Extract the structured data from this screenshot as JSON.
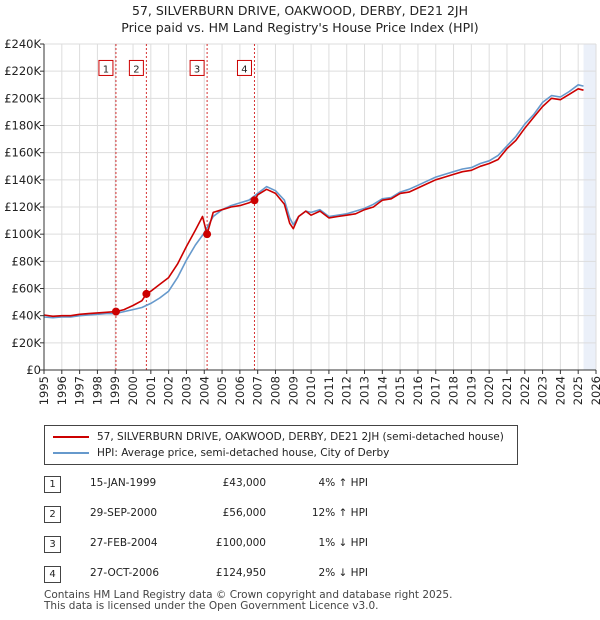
{
  "chart_data": {
    "type": "line",
    "title_line1": "57, SILVERBURN DRIVE, OAKWOOD, DERBY, DE21 2JH",
    "title_line2": "Price paid vs. HM Land Registry's House Price Index (HPI)",
    "xlim": [
      1995,
      2026
    ],
    "ylim": [
      0,
      240000
    ],
    "x_ticks": [
      "1995",
      "1996",
      "1997",
      "1998",
      "1999",
      "2000",
      "2001",
      "2002",
      "2003",
      "2004",
      "2005",
      "2006",
      "2007",
      "2008",
      "2009",
      "2010",
      "2011",
      "2012",
      "2013",
      "2014",
      "2015",
      "2016",
      "2017",
      "2018",
      "2019",
      "2020",
      "2021",
      "2022",
      "2023",
      "2024",
      "2025",
      "2026"
    ],
    "y_ticks": [
      {
        "value": 0,
        "label": "£0"
      },
      {
        "value": 20000,
        "label": "£20K"
      },
      {
        "value": 40000,
        "label": "£40K"
      },
      {
        "value": 60000,
        "label": "£60K"
      },
      {
        "value": 80000,
        "label": "£80K"
      },
      {
        "value": 100000,
        "label": "£100K"
      },
      {
        "value": 120000,
        "label": "£120K"
      },
      {
        "value": 140000,
        "label": "£140K"
      },
      {
        "value": 160000,
        "label": "£160K"
      },
      {
        "value": 180000,
        "label": "£180K"
      },
      {
        "value": 200000,
        "label": "£200K"
      },
      {
        "value": 220000,
        "label": "£220K"
      },
      {
        "value": 240000,
        "label": "£240K"
      }
    ],
    "grid": true,
    "series": [
      {
        "name": "57, SILVERBURN DRIVE, OAKWOOD, DERBY, DE21 2JH (semi-detached house)",
        "color": "#cc0000",
        "x": [
          1995.0,
          1995.5,
          1996.0,
          1996.5,
          1997.0,
          1997.5,
          1998.0,
          1998.5,
          1999.04,
          1999.5,
          2000.0,
          2000.5,
          2000.75,
          2001.0,
          2001.5,
          2002.0,
          2002.5,
          2003.0,
          2003.5,
          2003.9,
          2004.16,
          2004.5,
          2005.0,
          2005.5,
          2006.0,
          2006.5,
          2006.82,
          2007.0,
          2007.5,
          2008.0,
          2008.5,
          2008.8,
          2009.0,
          2009.3,
          2009.7,
          2010.0,
          2010.5,
          2011.0,
          2011.5,
          2012.0,
          2012.5,
          2013.0,
          2013.5,
          2014.0,
          2014.5,
          2015.0,
          2015.5,
          2016.0,
          2016.5,
          2017.0,
          2017.5,
          2018.0,
          2018.5,
          2019.0,
          2019.5,
          2020.0,
          2020.5,
          2021.0,
          2021.5,
          2022.0,
          2022.5,
          2023.0,
          2023.5,
          2024.0,
          2024.5,
          2025.0,
          2025.3
        ],
        "y": [
          40500,
          39500,
          40000,
          40000,
          41000,
          41500,
          42000,
          42500,
          43000,
          44500,
          47500,
          51000,
          56000,
          58000,
          63000,
          68000,
          78000,
          91000,
          103000,
          113000,
          100000,
          116000,
          118000,
          120000,
          121000,
          123000,
          124950,
          129000,
          133000,
          130000,
          122000,
          108000,
          104000,
          113000,
          117000,
          114000,
          117000,
          112000,
          113000,
          114000,
          115000,
          118000,
          120000,
          125000,
          126000,
          130000,
          131000,
          134000,
          137000,
          140000,
          142000,
          144000,
          146000,
          147000,
          150000,
          152000,
          155000,
          163000,
          169000,
          178000,
          186000,
          194000,
          200000,
          199000,
          203000,
          207000,
          206000
        ]
      },
      {
        "name": "HPI: Average price, semi-detached house, City of Derby",
        "color": "#6699cc",
        "x": [
          1995.0,
          1995.5,
          1996.0,
          1996.5,
          1997.0,
          1997.5,
          1998.0,
          1998.5,
          1999.0,
          1999.5,
          2000.0,
          2000.5,
          2001.0,
          2001.5,
          2002.0,
          2002.5,
          2003.0,
          2003.5,
          2004.0,
          2004.5,
          2005.0,
          2005.5,
          2006.0,
          2006.5,
          2007.0,
          2007.5,
          2008.0,
          2008.5,
          2008.8,
          2009.0,
          2009.3,
          2009.7,
          2010.0,
          2010.5,
          2011.0,
          2011.5,
          2012.0,
          2012.5,
          2013.0,
          2013.5,
          2014.0,
          2014.5,
          2015.0,
          2015.5,
          2016.0,
          2016.5,
          2017.0,
          2017.5,
          2018.0,
          2018.5,
          2019.0,
          2019.5,
          2020.0,
          2020.5,
          2021.0,
          2021.5,
          2022.0,
          2022.5,
          2023.0,
          2023.5,
          2024.0,
          2024.5,
          2025.0,
          2025.3
        ],
        "y": [
          39000,
          38500,
          39000,
          39000,
          40000,
          40500,
          41000,
          41500,
          41500,
          43000,
          44500,
          46000,
          49000,
          53000,
          58000,
          68000,
          81000,
          92000,
          101000,
          113000,
          118000,
          121000,
          123000,
          125000,
          130000,
          135000,
          132000,
          125000,
          112000,
          107000,
          113000,
          117000,
          116000,
          118000,
          113000,
          114000,
          115000,
          117000,
          119000,
          122000,
          126000,
          127000,
          131000,
          133000,
          136000,
          139000,
          142000,
          144000,
          146000,
          148000,
          149000,
          152000,
          154000,
          158000,
          165000,
          172000,
          181000,
          188000,
          197000,
          202000,
          201000,
          205000,
          210000,
          209000
        ]
      }
    ],
    "sales": [
      {
        "marker": "1",
        "x": 1999.04,
        "price": 43000
      },
      {
        "marker": "2",
        "x": 2000.75,
        "price": 56000
      },
      {
        "marker": "3",
        "x": 2004.16,
        "price": 100000
      },
      {
        "marker": "4",
        "x": 2006.82,
        "price": 124950
      }
    ],
    "annotation_box_value": 222000,
    "forecast_start": 2025.3,
    "marker_color": "#cc0000",
    "shade_color": "#dde6f5",
    "axis_color": "#333333",
    "grid_color": "#dddddd"
  },
  "legend": {
    "items": [
      {
        "label": "57, SILVERBURN DRIVE, OAKWOOD, DERBY, DE21 2JH (semi-detached house)",
        "color": "#cc0000"
      },
      {
        "label": "HPI: Average price, semi-detached house, City of Derby",
        "color": "#6699cc"
      }
    ]
  },
  "sales_table": [
    {
      "num": "1",
      "date": "15-JAN-1999",
      "price": "£43,000",
      "hpi": "4% ↑ HPI"
    },
    {
      "num": "2",
      "date": "29-SEP-2000",
      "price": "£56,000",
      "hpi": "12% ↑ HPI"
    },
    {
      "num": "3",
      "date": "27-FEB-2004",
      "price": "£100,000",
      "hpi": "1% ↓ HPI"
    },
    {
      "num": "4",
      "date": "27-OCT-2006",
      "price": "£124,950",
      "hpi": "2% ↓ HPI"
    }
  ],
  "footer": {
    "line1": "Contains HM Land Registry data © Crown copyright and database right 2025.",
    "line2": "This data is licensed under the Open Government Licence v3.0."
  }
}
